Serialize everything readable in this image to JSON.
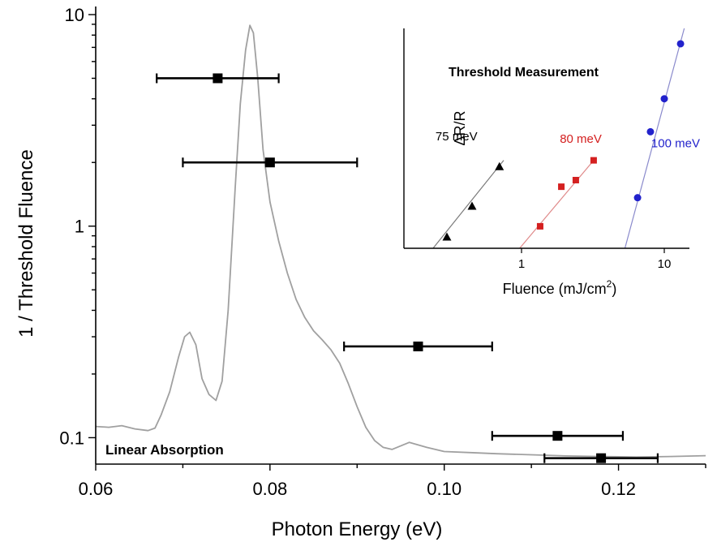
{
  "chart_data": [
    {
      "type": "scatter",
      "xlabel": "Photon Energy (eV)",
      "ylabel": "1 / Threshold Fluence",
      "xlim": [
        0.06,
        0.13
      ],
      "ylim": [
        0.075,
        10
      ],
      "y_scale": "log",
      "x_ticks": [
        {
          "value": 0.06,
          "label": "0.06"
        },
        {
          "value": 0.08,
          "label": "0.08"
        },
        {
          "value": 0.1,
          "label": "0.10"
        },
        {
          "value": 0.12,
          "label": "0.12"
        }
      ],
      "y_ticks": [
        {
          "value": 0.1,
          "label": "0.1"
        },
        {
          "value": 1,
          "label": "1"
        },
        {
          "value": 10,
          "label": "10"
        }
      ],
      "annotation": "Linear Absorption",
      "curve_color": "#a0a0a0",
      "marker_color": "#000000",
      "absorption_curve": {
        "x": [
          0.06,
          0.0615,
          0.063,
          0.0645,
          0.066,
          0.0668,
          0.0675,
          0.0685,
          0.0695,
          0.0702,
          0.0708,
          0.0715,
          0.0722,
          0.073,
          0.0738,
          0.0745,
          0.0752,
          0.076,
          0.0766,
          0.0772,
          0.0777,
          0.0781,
          0.0786,
          0.0792,
          0.08,
          0.081,
          0.082,
          0.083,
          0.084,
          0.085,
          0.086,
          0.087,
          0.088,
          0.089,
          0.09,
          0.091,
          0.092,
          0.093,
          0.094,
          0.096,
          0.098,
          0.1,
          0.103,
          0.106,
          0.11,
          0.114,
          0.118,
          0.122,
          0.126,
          0.13
        ],
        "y": [
          0.113,
          0.112,
          0.114,
          0.11,
          0.108,
          0.111,
          0.128,
          0.165,
          0.24,
          0.3,
          0.315,
          0.275,
          0.19,
          0.16,
          0.15,
          0.185,
          0.4,
          1.5,
          3.8,
          6.8,
          8.9,
          8.2,
          5.0,
          2.3,
          1.3,
          0.85,
          0.6,
          0.45,
          0.37,
          0.32,
          0.29,
          0.26,
          0.225,
          0.18,
          0.14,
          0.112,
          0.097,
          0.09,
          0.088,
          0.095,
          0.09,
          0.086,
          0.085,
          0.084,
          0.083,
          0.082,
          0.0815,
          0.081,
          0.0815,
          0.0822
        ]
      },
      "points": [
        {
          "x": 0.074,
          "y": 5.0,
          "x_err_low": 0.067,
          "x_err_high": 0.081
        },
        {
          "x": 0.08,
          "y": 2.0,
          "x_err_low": 0.07,
          "x_err_high": 0.09
        },
        {
          "x": 0.097,
          "y": 0.27,
          "x_err_low": 0.0885,
          "x_err_high": 0.1055
        },
        {
          "x": 0.113,
          "y": 0.102,
          "x_err_low": 0.1055,
          "x_err_high": 0.1205
        },
        {
          "x": 0.118,
          "y": 0.08,
          "x_err_low": 0.1115,
          "x_err_high": 0.1245
        }
      ]
    },
    {
      "type": "scatter",
      "title": "Threshold Measurement",
      "xlabel_main": "Fluence (mJ/cm",
      "xlabel_sup": "2",
      "xlabel_close": ")",
      "ylabel": "ΔR/R",
      "x_scale": "log",
      "xlim": [
        0.15,
        15
      ],
      "ylim": [
        0,
        10
      ],
      "x_ticks": [
        {
          "value": 1,
          "label": "1"
        },
        {
          "value": 10,
          "label": "10"
        }
      ],
      "series": [
        {
          "name": "75 meV",
          "color": "#000000",
          "marker": "triangle",
          "line_color": "#7a7a7a",
          "points": [
            [
              0.3,
              0.5
            ],
            [
              0.45,
              1.9
            ],
            [
              0.7,
              3.7
            ]
          ],
          "fit": [
            [
              0.24,
              -0.3
            ],
            [
              0.75,
              4.0
            ]
          ],
          "label_pos": [
            0.35,
            4.9
          ]
        },
        {
          "name": "80 meV",
          "color": "#d42020",
          "marker": "square",
          "line_color": "#e08a8a",
          "points": [
            [
              1.35,
              1.0
            ],
            [
              1.9,
              2.8
            ],
            [
              2.4,
              3.1
            ],
            [
              3.2,
              4.0
            ]
          ],
          "fit": [
            [
              0.97,
              -0.3
            ],
            [
              3.3,
              4.1
            ]
          ],
          "label_pos": [
            2.6,
            4.8
          ]
        },
        {
          "name": "100 meV",
          "color": "#2222cc",
          "marker": "circle",
          "line_color": "#8a8acc",
          "points": [
            [
              6.5,
              2.3
            ],
            [
              8.0,
              5.3
            ],
            [
              10.0,
              6.8
            ],
            [
              13.0,
              9.3
            ]
          ],
          "fit": [
            [
              5.3,
              -0.3
            ],
            [
              13.8,
              10.2
            ]
          ],
          "label_pos": [
            12.0,
            4.6
          ]
        }
      ]
    }
  ]
}
